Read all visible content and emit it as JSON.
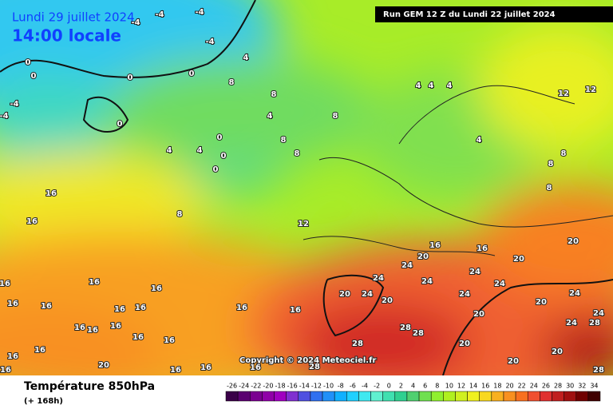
{
  "header": {
    "date": "Lundi 29 juillet 2024",
    "time": "14:00 locale",
    "run": "Run GEM 12 Z du Lundi 22 juillet 2024",
    "copyright": "Copyright © 2024 Meteociel.fr"
  },
  "footer": {
    "title": "Température 850hPa",
    "subtitle": "(+ 168h)"
  },
  "legend": {
    "ticks": [
      -26,
      -24,
      -22,
      -20,
      -18,
      -16,
      -14,
      -12,
      -10,
      -8,
      -6,
      -4,
      -2,
      0,
      2,
      4,
      6,
      8,
      10,
      12,
      14,
      16,
      18,
      20,
      22,
      24,
      26,
      28,
      30,
      32,
      34
    ],
    "colors": [
      "#3a0048",
      "#5a0070",
      "#7a0090",
      "#9000a8",
      "#a000c0",
      "#8030d0",
      "#5050e0",
      "#3070f0",
      "#2090f8",
      "#10b0ff",
      "#20d0ff",
      "#40e8f0",
      "#60f0d0",
      "#40e0b0",
      "#30d090",
      "#50d070",
      "#70e050",
      "#90f030",
      "#b0f020",
      "#d0f020",
      "#f0f020",
      "#f8d820",
      "#f8b020",
      "#f89020",
      "#f87020",
      "#f05030",
      "#e03030",
      "#c02020",
      "#a01010",
      "#700000",
      "#400000"
    ]
  },
  "map_labels": [
    -4,
    -4,
    -4,
    -4,
    4,
    0,
    0,
    0,
    0,
    8,
    -4,
    -4,
    0,
    4,
    4,
    0,
    0,
    0,
    8,
    4,
    8,
    8,
    8,
    4,
    4,
    4,
    12,
    12,
    4,
    8,
    8,
    8,
    12,
    8,
    16,
    16,
    16,
    16,
    16,
    16,
    20,
    20,
    20,
    24,
    24,
    24,
    24,
    24,
    20,
    24,
    20,
    24,
    20,
    24,
    20,
    24,
    28,
    28,
    28,
    24,
    28,
    16,
    16,
    20,
    28,
    28,
    16,
    16,
    16,
    16,
    16,
    16,
    16,
    16,
    16,
    16,
    16,
    16,
    16,
    16,
    16,
    20,
    20,
    20,
    16
  ]
}
